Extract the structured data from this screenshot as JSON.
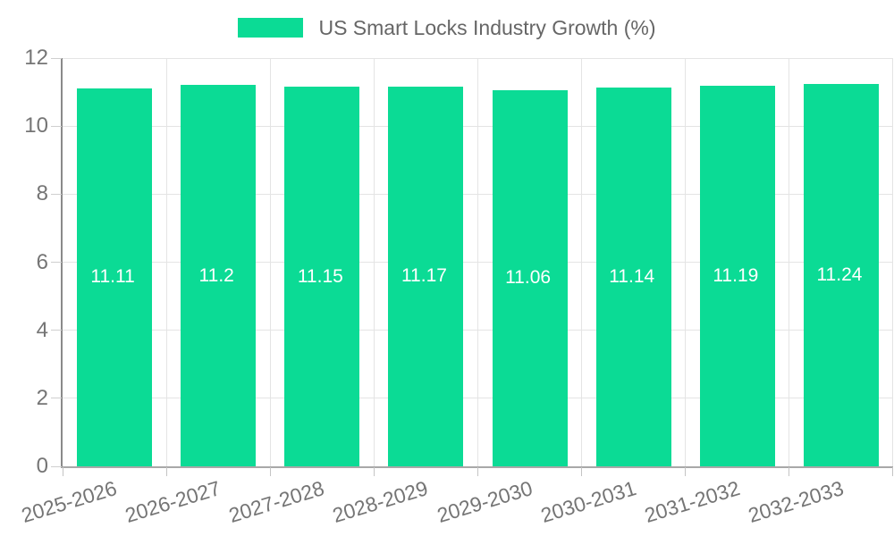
{
  "chart_data": {
    "type": "bar",
    "title": "US Smart Locks Industry Growth (%)",
    "legend": "US Smart Locks Industry Growth (%)",
    "legend_position": "top-center",
    "categories": [
      "2025-2026",
      "2026-2027",
      "2027-2028",
      "2028-2029",
      "2029-2030",
      "2030-2031",
      "2031-2032",
      "2032-2033"
    ],
    "values": [
      11.11,
      11.2,
      11.15,
      11.17,
      11.06,
      11.14,
      11.19,
      11.24
    ],
    "xlabel": "",
    "ylabel": "",
    "ylim": [
      0,
      12
    ],
    "yticks": [
      0,
      2,
      4,
      6,
      8,
      10,
      12
    ],
    "grid": true,
    "x_label_rotation_deg": -17,
    "bar_color": "#0bdb95",
    "value_label_color": "#ffffff",
    "axis_text_color": "#757575",
    "legend_text_color": "#666666"
  }
}
